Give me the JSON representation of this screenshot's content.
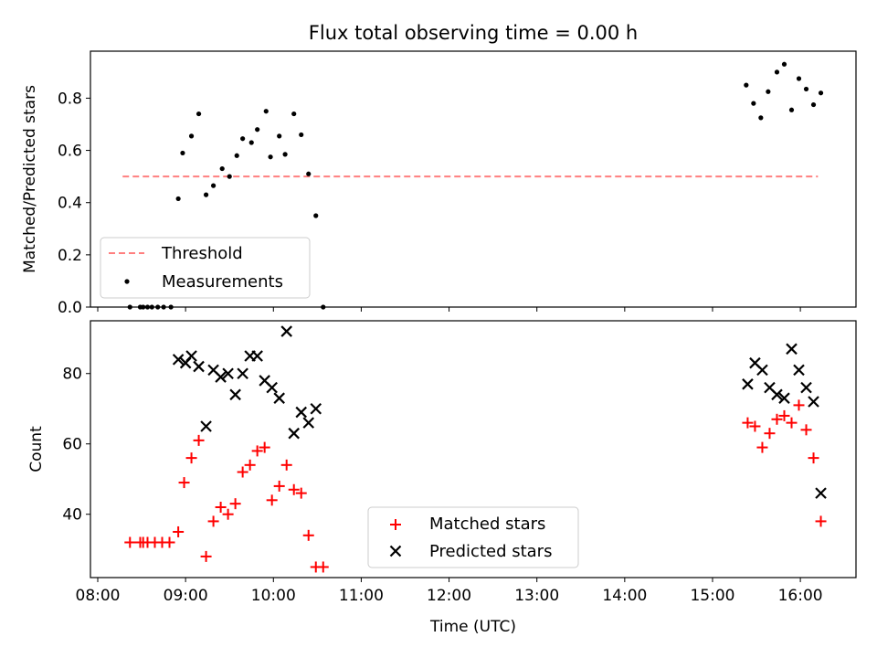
{
  "chart_data": [
    {
      "type": "scatter",
      "title": "Flux total observing time = 0.00 h",
      "xlabel": "",
      "ylabel": "Matched/Predicted stars",
      "xlim": [
        "07:55",
        "16:38"
      ],
      "ylim": [
        0.0,
        0.98
      ],
      "x_tick_labels": [
        "08:00",
        "09:00",
        "10:00",
        "11:00",
        "12:00",
        "13:00",
        "14:00",
        "15:00",
        "16:00"
      ],
      "y_ticks": [
        0.0,
        0.2,
        0.4,
        0.6,
        0.8
      ],
      "y_tick_labels": [
        "0.0",
        "0.2",
        "0.4",
        "0.6",
        "0.8"
      ],
      "legend_position": "lower-left",
      "threshold": {
        "name": "Threshold",
        "value": 0.5,
        "x_start": "08:17",
        "x_end": "16:12",
        "color": "#ff7f7f"
      },
      "series": [
        {
          "name": "Measurements",
          "color": "#000000",
          "marker": "dot",
          "points": [
            [
              "08:22",
              0.0
            ],
            [
              "08:29",
              0.0
            ],
            [
              "08:31",
              0.0
            ],
            [
              "08:34",
              0.0
            ],
            [
              "08:37",
              0.0
            ],
            [
              "08:41",
              0.0
            ],
            [
              "08:45",
              0.0
            ],
            [
              "08:50",
              0.0
            ],
            [
              "08:55",
              0.415
            ],
            [
              "08:58",
              0.59
            ],
            [
              "09:04",
              0.655
            ],
            [
              "09:09",
              0.74
            ],
            [
              "09:14",
              0.43
            ],
            [
              "09:19",
              0.465
            ],
            [
              "09:25",
              0.53
            ],
            [
              "09:30",
              0.5
            ],
            [
              "09:35",
              0.58
            ],
            [
              "09:39",
              0.645
            ],
            [
              "09:45",
              0.63
            ],
            [
              "09:49",
              0.68
            ],
            [
              "09:55",
              0.75
            ],
            [
              "09:58",
              0.575
            ],
            [
              "10:04",
              0.655
            ],
            [
              "10:08",
              0.585
            ],
            [
              "10:14",
              0.74
            ],
            [
              "10:19",
              0.66
            ],
            [
              "10:24",
              0.51
            ],
            [
              "10:29",
              0.35
            ],
            [
              "10:34",
              0.0
            ],
            [
              "15:23",
              0.85
            ],
            [
              "15:28",
              0.78
            ],
            [
              "15:33",
              0.725
            ],
            [
              "15:38",
              0.825
            ],
            [
              "15:44",
              0.9
            ],
            [
              "15:49",
              0.93
            ],
            [
              "15:54",
              0.755
            ],
            [
              "15:59",
              0.875
            ],
            [
              "16:04",
              0.835
            ],
            [
              "16:09",
              0.775
            ],
            [
              "16:14",
              0.82
            ]
          ]
        }
      ]
    },
    {
      "type": "scatter",
      "title": "",
      "xlabel": "Time (UTC)",
      "ylabel": "Count",
      "xlim": [
        "07:55",
        "16:38"
      ],
      "ylim": [
        22,
        95
      ],
      "x_tick_labels": [
        "08:00",
        "09:00",
        "10:00",
        "11:00",
        "12:00",
        "13:00",
        "14:00",
        "15:00",
        "16:00"
      ],
      "y_ticks": [
        40,
        60,
        80
      ],
      "y_tick_labels": [
        "40",
        "60",
        "80"
      ],
      "legend_position": "lower-center",
      "series": [
        {
          "name": "Matched stars",
          "color": "#ff0000",
          "marker": "plus",
          "points": [
            [
              "08:22",
              32
            ],
            [
              "08:29",
              32
            ],
            [
              "08:31",
              32
            ],
            [
              "08:34",
              32
            ],
            [
              "08:39",
              32
            ],
            [
              "08:44",
              32
            ],
            [
              "08:49",
              32
            ],
            [
              "08:55",
              35
            ],
            [
              "08:59",
              49
            ],
            [
              "09:04",
              56
            ],
            [
              "09:09",
              61
            ],
            [
              "09:14",
              28
            ],
            [
              "09:19",
              38
            ],
            [
              "09:24",
              42
            ],
            [
              "09:29",
              40
            ],
            [
              "09:34",
              43
            ],
            [
              "09:39",
              52
            ],
            [
              "09:44",
              54
            ],
            [
              "09:49",
              58
            ],
            [
              "09:54",
              59
            ],
            [
              "09:59",
              44
            ],
            [
              "10:04",
              48
            ],
            [
              "10:09",
              54
            ],
            [
              "10:14",
              47
            ],
            [
              "10:19",
              46
            ],
            [
              "10:24",
              34
            ],
            [
              "10:29",
              25
            ],
            [
              "10:34",
              25
            ],
            [
              "15:24",
              66
            ],
            [
              "15:29",
              65
            ],
            [
              "15:34",
              59
            ],
            [
              "15:39",
              63
            ],
            [
              "15:44",
              67
            ],
            [
              "15:49",
              68
            ],
            [
              "15:54",
              66
            ],
            [
              "15:59",
              71
            ],
            [
              "16:04",
              64
            ],
            [
              "16:09",
              56
            ],
            [
              "16:14",
              38
            ]
          ]
        },
        {
          "name": "Predicted stars",
          "color": "#000000",
          "marker": "x",
          "points": [
            [
              "08:55",
              84
            ],
            [
              "09:00",
              83
            ],
            [
              "09:04",
              85
            ],
            [
              "09:09",
              82
            ],
            [
              "09:14",
              65
            ],
            [
              "09:19",
              81
            ],
            [
              "09:24",
              79
            ],
            [
              "09:29",
              80
            ],
            [
              "09:34",
              74
            ],
            [
              "09:39",
              80
            ],
            [
              "09:44",
              85
            ],
            [
              "09:49",
              85
            ],
            [
              "09:54",
              78
            ],
            [
              "09:59",
              76
            ],
            [
              "10:04",
              73
            ],
            [
              "10:09",
              92
            ],
            [
              "10:14",
              63
            ],
            [
              "10:19",
              69
            ],
            [
              "10:24",
              66
            ],
            [
              "10:29",
              70
            ],
            [
              "15:24",
              77
            ],
            [
              "15:29",
              83
            ],
            [
              "15:34",
              81
            ],
            [
              "15:39",
              76
            ],
            [
              "15:44",
              74
            ],
            [
              "15:49",
              73
            ],
            [
              "15:54",
              87
            ],
            [
              "15:59",
              81
            ],
            [
              "16:04",
              76
            ],
            [
              "16:09",
              72
            ],
            [
              "16:14",
              46
            ]
          ]
        }
      ]
    }
  ]
}
